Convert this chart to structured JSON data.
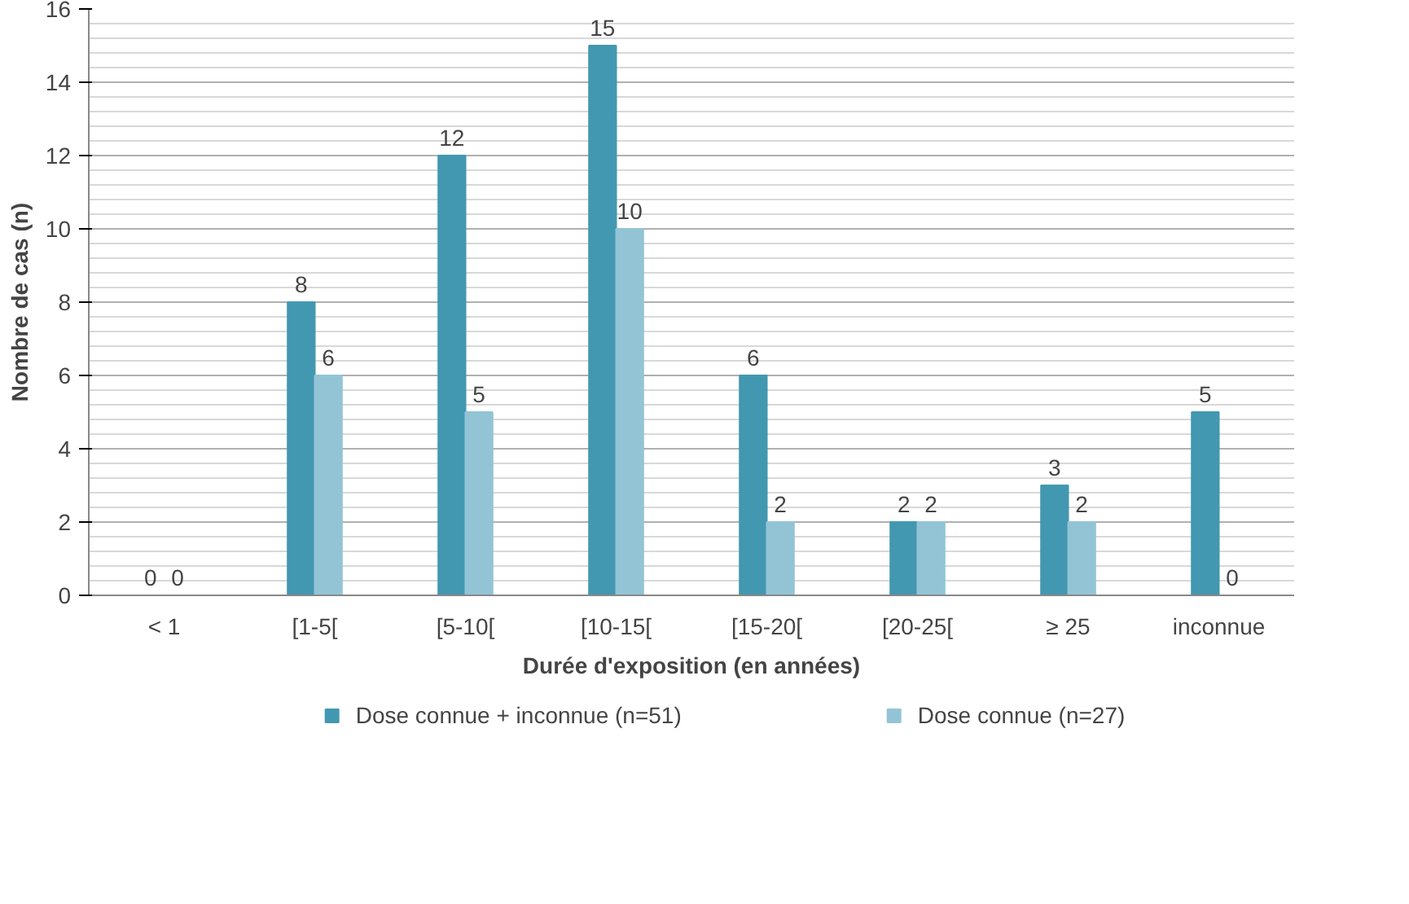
{
  "chart_data": {
    "type": "bar",
    "xlabel": "Durée d'exposition (en années)",
    "ylabel": "Nombre de cas (n)",
    "categories": [
      "< 1",
      "[1-5[",
      "[5-10[",
      "[10-15[",
      "[15-20[",
      "[20-25[",
      "≥ 25",
      "inconnue"
    ],
    "series": [
      {
        "name": "Dose connue + inconnue (n=51)",
        "color": "#4298b0",
        "values": [
          0,
          8,
          12,
          15,
          6,
          2,
          3,
          5
        ]
      },
      {
        "name": "Dose connue (n=27)",
        "color": "#93c4d6",
        "values": [
          0,
          6,
          5,
          10,
          2,
          2,
          2,
          0
        ]
      }
    ],
    "ylim": [
      0,
      16
    ],
    "yticks": [
      0,
      2,
      4,
      6,
      8,
      10,
      12,
      14,
      16
    ],
    "grid": "y",
    "legend": "bottom",
    "data_labels": true
  }
}
